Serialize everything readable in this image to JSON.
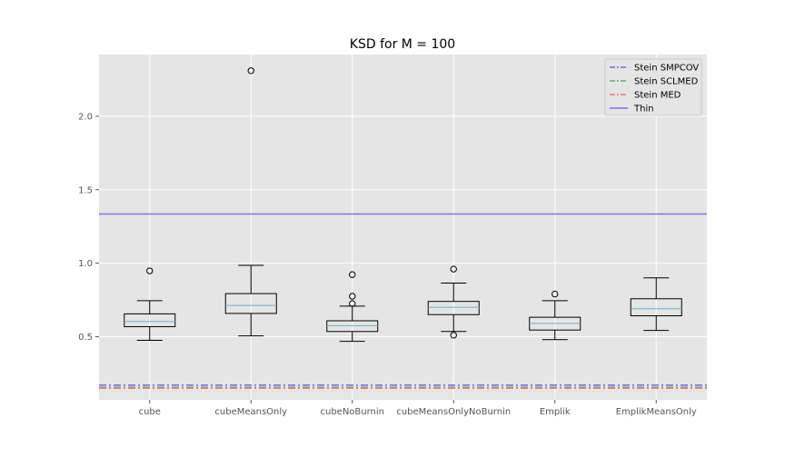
{
  "chart_data": {
    "type": "box",
    "title": "KSD for M = 100",
    "xlabel": "",
    "ylabel": "",
    "ylim": [
      0.07,
      2.42
    ],
    "yticks": [
      0.5,
      1.0,
      1.5,
      2.0
    ],
    "ytick_labels": [
      "0.5",
      "1.0",
      "1.5",
      "2.0"
    ],
    "grid": true,
    "legend_position": "top-right",
    "categories": [
      "cube",
      "cubeMeansOnly",
      "cubeNoBurnin",
      "cubeMeansOnlyNoBurnin",
      "Emplik",
      "EmplikMeansOnly"
    ],
    "boxes": [
      {
        "whislo": 0.475,
        "q1": 0.568,
        "med": 0.603,
        "q3": 0.655,
        "whishi": 0.745,
        "fliers": [
          0.948
        ]
      },
      {
        "whislo": 0.505,
        "q1": 0.658,
        "med": 0.712,
        "q3": 0.793,
        "whishi": 0.985,
        "fliers": [
          2.31
        ]
      },
      {
        "whislo": 0.468,
        "q1": 0.535,
        "med": 0.575,
        "q3": 0.608,
        "whishi": 0.708,
        "fliers": [
          0.725,
          0.775,
          0.922
        ]
      },
      {
        "whislo": 0.535,
        "q1": 0.65,
        "med": 0.7,
        "q3": 0.74,
        "whishi": 0.865,
        "fliers": [
          0.51,
          0.96
        ]
      },
      {
        "whislo": 0.48,
        "q1": 0.545,
        "med": 0.59,
        "q3": 0.632,
        "whishi": 0.745,
        "fliers": [
          0.79
        ]
      },
      {
        "whislo": 0.542,
        "q1": 0.642,
        "med": 0.69,
        "q3": 0.758,
        "whishi": 0.9,
        "fliers": []
      }
    ],
    "reference_lines": [
      {
        "name": "Stein SMPCOV",
        "y": 0.17,
        "color": "#6a6ae6",
        "style": "dashdot"
      },
      {
        "name": "Stein SCLMED",
        "y": 0.155,
        "color": "#6aaa6a",
        "style": "dashdot"
      },
      {
        "name": "Stein MED",
        "y": 0.15,
        "color": "#ea7777",
        "style": "dashdot"
      },
      {
        "name": "Thin",
        "y": 1.335,
        "color": "#7777ee",
        "style": "solid"
      }
    ],
    "colors": {
      "plot_background": "#e5e5e5",
      "grid": "#ffffff",
      "box": "#000000",
      "median": "#6baed6"
    }
  }
}
